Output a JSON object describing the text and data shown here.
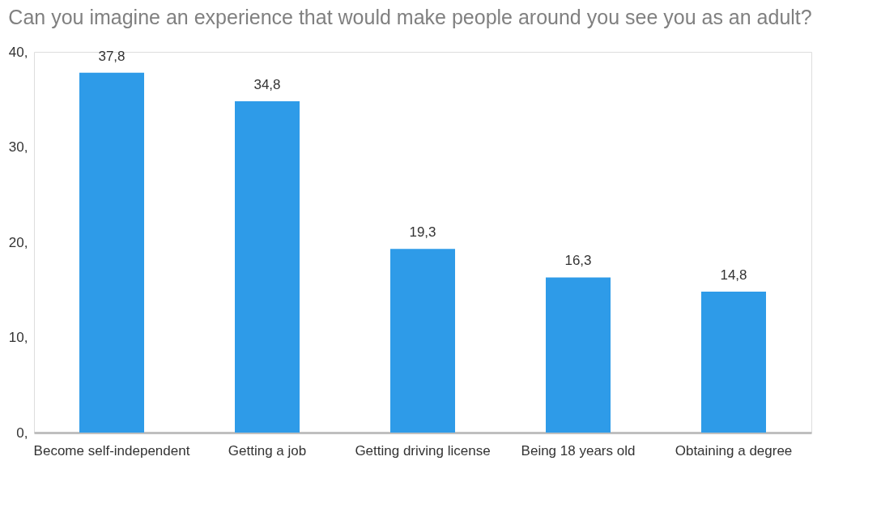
{
  "chart_data": {
    "type": "bar",
    "title": "Can you imagine an experience that would make people around you see you as an adult?",
    "categories": [
      "Become self-independent",
      "Getting a job",
      "Getting driving license",
      "Being 18 years old",
      "Obtaining a degree"
    ],
    "values": [
      37.8,
      34.8,
      19.3,
      16.3,
      14.8
    ],
    "value_labels": [
      "37,8",
      "34,8",
      "19,3",
      "16,3",
      "14,8"
    ],
    "color": "#2e9be8",
    "ylim": [
      0,
      40
    ],
    "yticks": [
      {
        "value": 0,
        "label": "0,"
      },
      {
        "value": 10,
        "label": "10,"
      },
      {
        "value": 20,
        "label": "20,"
      },
      {
        "value": 30,
        "label": "30,"
      },
      {
        "value": 40,
        "label": "40,"
      }
    ],
    "grid": false
  }
}
